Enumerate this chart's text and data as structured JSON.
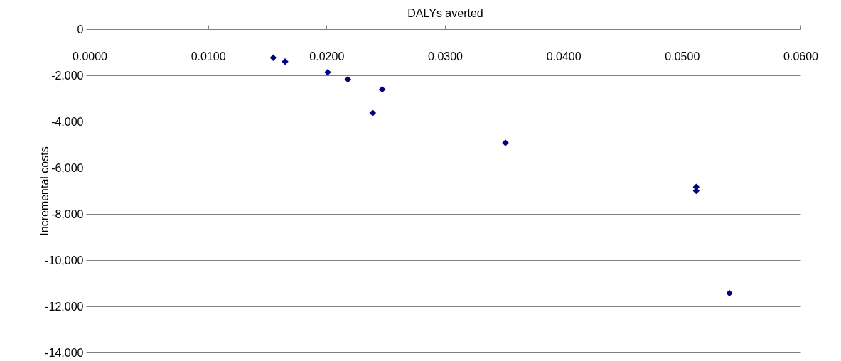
{
  "chart_data": {
    "type": "scatter",
    "xlabel": "DALYs averted",
    "ylabel": "Incremental costs",
    "x": [
      0.0155,
      0.0165,
      0.0201,
      0.0218,
      0.0239,
      0.0247,
      0.0351,
      0.0512,
      0.0512,
      0.054
    ],
    "series": [
      {
        "color": "#000080",
        "values": [
          -1240,
          -1410,
          -1870,
          -2180,
          -3630,
          -2610,
          -4920,
          -6840,
          -7000,
          -11430
        ]
      }
    ],
    "xlim": [
      0,
      0.06
    ],
    "xticks": [
      {
        "value": 0,
        "label": "0.0000"
      },
      {
        "value": 0.01,
        "label": "0.0100"
      },
      {
        "value": 0.02,
        "label": "0.0200"
      },
      {
        "value": 0.03,
        "label": "0.0300"
      },
      {
        "value": 0.04,
        "label": "0.0400"
      },
      {
        "value": 0.05,
        "label": "0.0500"
      },
      {
        "value": 0.06,
        "label": "0.0600"
      }
    ],
    "ylim": [
      -14000,
      0
    ],
    "yticks": [
      0,
      {
        "value": -2000,
        "label": "-2,000"
      },
      {
        "value": -4000,
        "label": "-4,000"
      },
      {
        "value": -6000,
        "label": "-6,000"
      },
      {
        "value": -8000,
        "label": "-8,000"
      },
      {
        "value": -10000,
        "label": "-10,000"
      },
      {
        "value": -12000,
        "label": "-12,000"
      },
      {
        "value": -14000,
        "label": "-14,000"
      }
    ],
    "grid": "y",
    "marker": "diamond"
  }
}
